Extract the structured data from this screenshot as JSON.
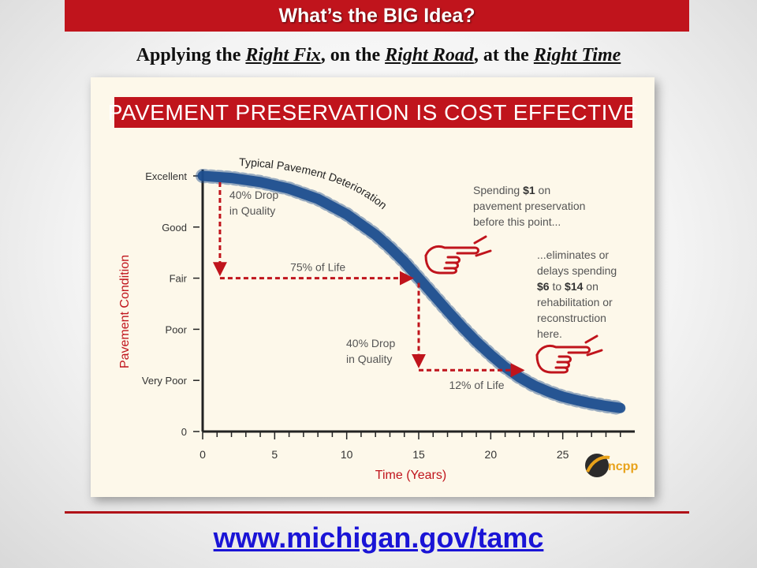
{
  "header": {
    "banner": "What’s the BIG Idea?",
    "subtitle_parts": [
      "Applying the ",
      "Right Fix",
      ", on the ",
      "Right Road",
      ", at the ",
      "Right Time"
    ]
  },
  "footer": {
    "url": "www.michigan.gov/tamc"
  },
  "chart_data": {
    "type": "line",
    "title": "PAVEMENT PRESERVATION IS COST EFFECTIVE",
    "xlabel": "Time (Years)",
    "ylabel": "Pavement Condition",
    "xlim": [
      0,
      30
    ],
    "ylim": [
      0,
      5
    ],
    "x_ticks": [
      0,
      5,
      10,
      15,
      20,
      25
    ],
    "y_ticks": [
      {
        "value": 0,
        "label": "0"
      },
      {
        "value": 1,
        "label": "Very Poor"
      },
      {
        "value": 2,
        "label": "Poor"
      },
      {
        "value": 3,
        "label": "Fair"
      },
      {
        "value": 4,
        "label": "Good"
      },
      {
        "value": 5,
        "label": "Excellent"
      }
    ],
    "series": [
      {
        "name": "Typical Pavement Deterioration",
        "color": "#1d4e8f",
        "x": [
          0,
          2,
          4,
          6,
          8,
          10,
          12,
          13,
          14,
          15,
          16,
          17,
          18,
          19,
          20,
          21,
          22,
          23,
          24,
          25,
          26,
          27,
          28,
          29
        ],
        "y": [
          5.0,
          4.96,
          4.88,
          4.75,
          4.55,
          4.25,
          3.85,
          3.6,
          3.32,
          3.0,
          2.68,
          2.36,
          2.05,
          1.76,
          1.5,
          1.26,
          1.06,
          0.9,
          0.78,
          0.68,
          0.61,
          0.55,
          0.5,
          0.46
        ]
      }
    ],
    "annotations": {
      "drop1": {
        "text_lines": [
          "40% Drop",
          "in Quality"
        ],
        "x": 1.2,
        "y_from": 5,
        "y_to": 3
      },
      "life1": {
        "text": "75% of Life",
        "x_from": 1.2,
        "x_to": 14.8,
        "y": 3
      },
      "drop2": {
        "text_lines": [
          "40% Drop",
          "in Quality"
        ],
        "x": 15,
        "y_from": 3,
        "y_to": 1.2
      },
      "life2": {
        "text": "12% of Life",
        "x_from": 15,
        "x_to": 22.5,
        "y": 1.2
      },
      "callout1": [
        "Spending $1 on",
        "pavement preservation",
        "before this point..."
      ],
      "callout2": [
        "...eliminates or",
        "delays spending",
        "$6 to $14 on",
        "rehabilitation or",
        "reconstruction",
        "here."
      ]
    },
    "colors": {
      "red": "#c0141c",
      "axis": "#222222",
      "curve": "#1d4e8f"
    },
    "logo_text": "ncpp"
  }
}
